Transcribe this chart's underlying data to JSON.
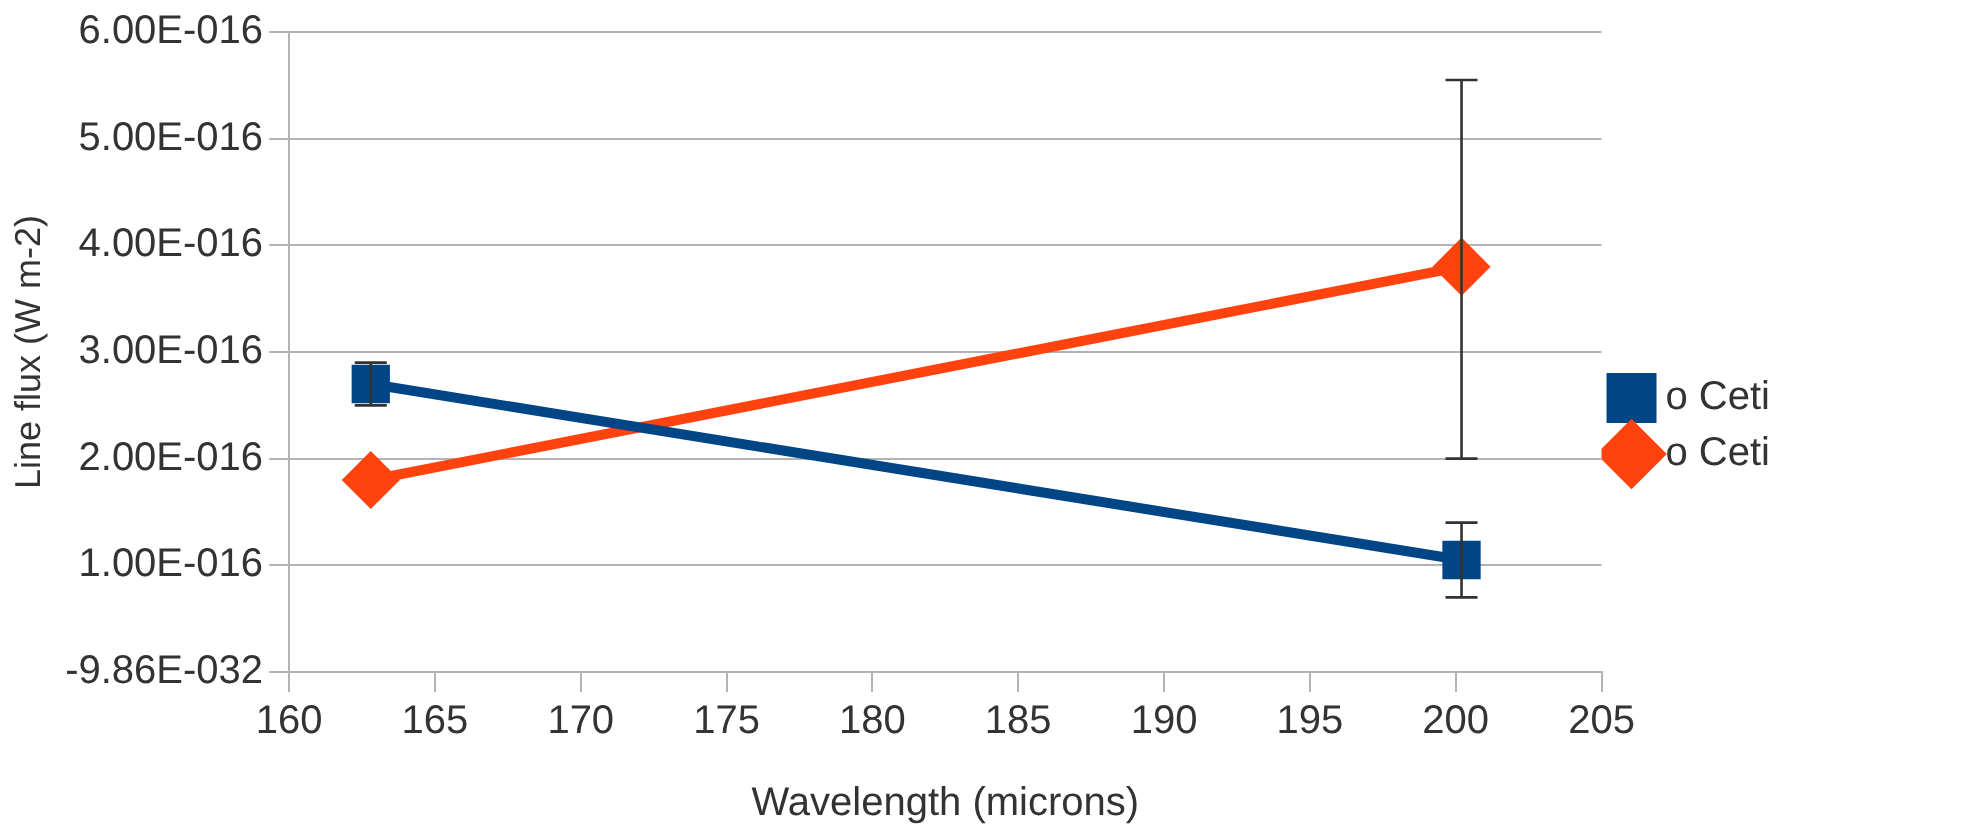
{
  "chart_data": {
    "type": "line",
    "xlabel": "Wavelength (microns)",
    "ylabel": "Line flux (W m-2)",
    "x": [
      162.8,
      200.2
    ],
    "xlim": [
      160,
      205
    ],
    "xticks": [
      160,
      165,
      170,
      175,
      180,
      185,
      190,
      195,
      200,
      205
    ],
    "ylim": [
      0,
      6e-16
    ],
    "yticks": [
      {
        "value": 0,
        "label": "-9.86E-032"
      },
      {
        "value": 1e-16,
        "label": "1.00E-016"
      },
      {
        "value": 2e-16,
        "label": "2.00E-016"
      },
      {
        "value": 3e-16,
        "label": "3.00E-016"
      },
      {
        "value": 4e-16,
        "label": "4.00E-016"
      },
      {
        "value": 5e-16,
        "label": "5.00E-016"
      },
      {
        "value": 6e-16,
        "label": "6.00E-016"
      }
    ],
    "grid": "y",
    "legend": "right",
    "line_style": "solid",
    "series": [
      {
        "name": "o Ceti",
        "color": "#004586",
        "marker": "square",
        "values": [
          2.7e-16,
          1.05e-16
        ],
        "errors": [
          [
            2.5e-16,
            2.9e-16
          ],
          [
            7e-17,
            1.4e-16
          ]
        ]
      },
      {
        "name": "o Ceti",
        "color": "#ff420e",
        "marker": "diamond",
        "values": [
          1.8e-16,
          3.8e-16
        ],
        "errors": [
          null,
          [
            2e-16,
            5.55e-16
          ]
        ]
      }
    ]
  }
}
